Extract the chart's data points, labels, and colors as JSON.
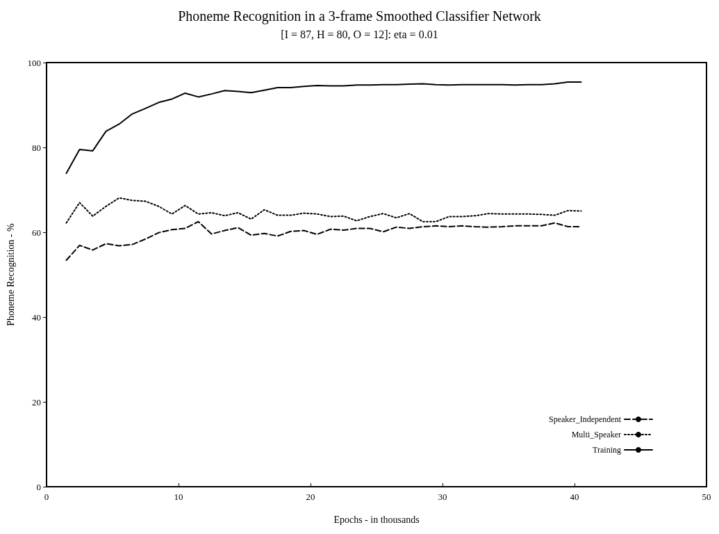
{
  "chart_data": {
    "type": "line",
    "title": "Phoneme Recognition in a 3-frame Smoothed Classifier Network",
    "subtitle": "[I = 87, H = 80, O = 12]: eta = 0.01",
    "xlabel": "Epochs - in thousands",
    "ylabel": "Phoneme Recognition - %",
    "x": [
      1.5,
      2.5,
      3.5,
      4.5,
      5.5,
      6.5,
      7.5,
      8.5,
      9.5,
      10.5,
      11.5,
      12.5,
      13.5,
      14.5,
      15.5,
      16.5,
      17.5,
      18.5,
      19.5,
      20.5,
      21.5,
      22.5,
      23.5,
      24.5,
      25.5,
      26.5,
      27.5,
      28.5,
      29.5,
      30.5,
      31.5,
      32.5,
      33.5,
      34.5,
      35.5,
      36.5,
      37.5,
      38.5,
      39.5,
      40.5
    ],
    "series": [
      {
        "name": "Speaker_Independent",
        "color": "#000000",
        "line_style": "dashed",
        "values": [
          53.4,
          56.9,
          55.8,
          57.3,
          56.8,
          57.1,
          58.4,
          59.9,
          60.6,
          60.9,
          62.5,
          59.6,
          60.4,
          61.1,
          59.3,
          59.7,
          59.1,
          60.2,
          60.4,
          59.5,
          60.7,
          60.5,
          60.9,
          60.9,
          60.1,
          61.2,
          60.9,
          61.3,
          61.5,
          61.3,
          61.5,
          61.3,
          61.2,
          61.3,
          61.5,
          61.5,
          61.5,
          62.2,
          61.3,
          61.3
        ]
      },
      {
        "name": "Multi_Speaker",
        "color": "#000000",
        "line_style": "dotted",
        "values": [
          62.2,
          67.0,
          63.8,
          66.1,
          68.1,
          67.5,
          67.3,
          66.1,
          64.3,
          66.3,
          64.3,
          64.6,
          63.9,
          64.6,
          63.1,
          65.3,
          64.0,
          64.0,
          64.5,
          64.3,
          63.7,
          63.8,
          62.7,
          63.7,
          64.4,
          63.4,
          64.4,
          62.5,
          62.5,
          63.7,
          63.7,
          63.9,
          64.4,
          64.3,
          64.3,
          64.3,
          64.2,
          64.0,
          65.1,
          65.0
        ]
      },
      {
        "name": "Training",
        "color": "#000000",
        "line_style": "solid",
        "values": [
          73.9,
          79.5,
          79.2,
          83.8,
          85.5,
          87.9,
          89.2,
          90.6,
          91.4,
          92.8,
          91.9,
          92.6,
          93.4,
          93.2,
          92.9,
          93.5,
          94.1,
          94.1,
          94.4,
          94.6,
          94.5,
          94.5,
          94.7,
          94.7,
          94.8,
          94.8,
          94.9,
          95.0,
          94.8,
          94.7,
          94.8,
          94.8,
          94.8,
          94.8,
          94.7,
          94.8,
          94.8,
          95.0,
          95.4,
          95.4
        ]
      }
    ],
    "xlim": [
      0,
      50
    ],
    "xticks": [
      0,
      10,
      20,
      30,
      40,
      50
    ],
    "ylim": [
      0,
      100
    ],
    "yticks": [
      0,
      20,
      40,
      60,
      80,
      100
    ],
    "grid": false,
    "legend": "bottom right",
    "marker": "none"
  }
}
